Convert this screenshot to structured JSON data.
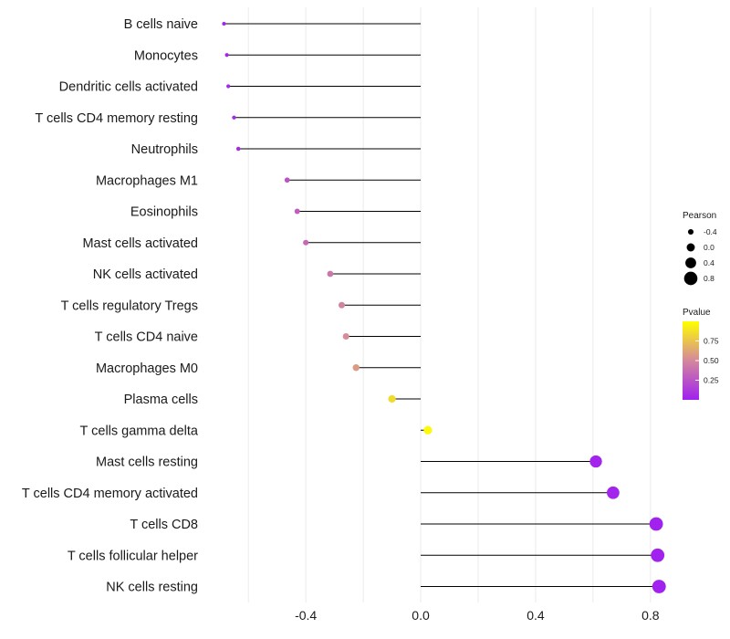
{
  "chart_data": {
    "type": "lollipop",
    "categories": [
      "B cells naive",
      "Monocytes",
      "Dendritic cells activated",
      "T cells CD4 memory resting",
      "Neutrophils",
      "Macrophages M1",
      "Eosinophils",
      "Mast cells activated",
      "NK cells activated",
      "T cells regulatory  Tregs",
      "T cells CD4 naive",
      "Macrophages M0",
      "Plasma cells",
      "T cells gamma delta",
      "Mast cells resting",
      "T cells CD4 memory activated",
      "T cells CD8",
      "T cells follicular helper",
      "NK cells resting"
    ],
    "pearson": [
      -0.685,
      -0.675,
      -0.67,
      -0.65,
      -0.635,
      -0.465,
      -0.43,
      -0.4,
      -0.315,
      -0.275,
      -0.26,
      -0.225,
      -0.1,
      0.025,
      0.61,
      0.67,
      0.82,
      0.825,
      0.83
    ],
    "pvalue": [
      0.02,
      0.02,
      0.03,
      0.05,
      0.05,
      0.25,
      0.3,
      0.35,
      0.42,
      0.48,
      0.52,
      0.58,
      0.85,
      0.98,
      0.02,
      0.02,
      0.01,
      0.01,
      0.01
    ],
    "xlim": [
      -0.75,
      0.88
    ],
    "xticks": [
      -0.4,
      0.0,
      0.4,
      0.8
    ],
    "xtick_labels": [
      "-0.4",
      "0.0",
      "0.4",
      "0.8"
    ],
    "xlabel": "",
    "ylabel": "",
    "size_legend": {
      "title": "Pearson",
      "values": [
        -0.4,
        0.0,
        0.4,
        0.8
      ],
      "labels": [
        "-0.4",
        "0.0",
        "0.4",
        "0.8"
      ]
    },
    "color_legend": {
      "title": "Pvalue",
      "ticks": [
        0.25,
        0.5,
        0.75
      ],
      "tick_labels": [
        "0.25",
        "0.50",
        "0.75"
      ],
      "low_color": "#a020f0",
      "mid_color": "#d4889c",
      "high_color": "#ffff00"
    },
    "stem_color": "#000000",
    "grid_color": "#ebebeb"
  }
}
